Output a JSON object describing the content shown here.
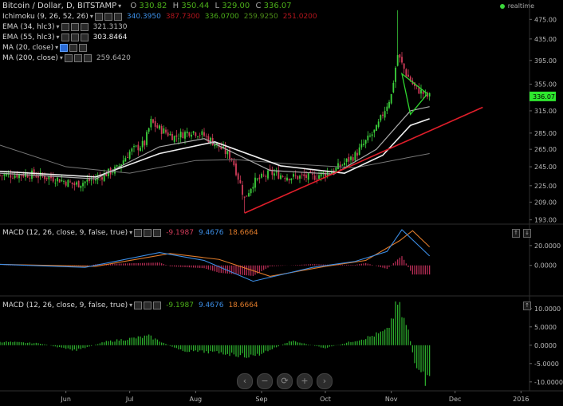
{
  "header": {
    "title": "Bitcoin / Dollar, D, BITSTAMP",
    "ohlc": {
      "o_label": "O",
      "o": "330.82",
      "h_label": "H",
      "h": "350.44",
      "l_label": "L",
      "l": "329.00",
      "c_label": "C",
      "c": "336.07"
    },
    "realtime": "realtime"
  },
  "indicators": [
    {
      "label": "Ichimoku (9, 26, 52, 26)",
      "values": [
        {
          "v": "340.3950",
          "color": "#3c8ee6"
        },
        {
          "v": "387.7300",
          "color": "#b3151d"
        },
        {
          "v": "336.0700",
          "color": "#4caf1a"
        },
        {
          "v": "259.9250",
          "color": "#4c8c18"
        },
        {
          "v": "251.0200",
          "color": "#b3151d"
        }
      ]
    },
    {
      "label": "EMA (34, hlc3)",
      "values": [
        {
          "v": "321.3130",
          "color": "#bbbbbb"
        }
      ]
    },
    {
      "label": "EMA (55, hlc3)",
      "values": [
        {
          "v": "303.8464",
          "color": "#eeeeee"
        }
      ]
    },
    {
      "label": "MA (20, close)",
      "values": []
    },
    {
      "label": "MA (200, close)",
      "values": [
        {
          "v": "259.6420",
          "color": "#aaaaaa"
        }
      ]
    }
  ],
  "macd_panels": [
    {
      "label": "MACD (12, 26, close, 9, false, true)",
      "values": [
        {
          "v": "-9.1987",
          "color": "#d23c5a"
        },
        {
          "v": "9.4676",
          "color": "#3c8ee6"
        },
        {
          "v": "18.6664",
          "color": "#e07b2a"
        }
      ]
    },
    {
      "label": "MACD (12, 26, close, 9, false, true)",
      "values": [
        {
          "v": "-9.1987",
          "color": "#4caf1a"
        },
        {
          "v": "9.4676",
          "color": "#3c8ee6"
        },
        {
          "v": "18.6664",
          "color": "#e07b2a"
        }
      ]
    }
  ],
  "price_axis": {
    "ticks": [
      "475.00",
      "435.00",
      "395.00",
      "355.00",
      "315.00",
      "285.00",
      "265.00",
      "245.00",
      "225.00",
      "209.00",
      "193.00"
    ],
    "last_price": "336.07"
  },
  "macd_axis": {
    "ticks": [
      "20.0000",
      "0.0000"
    ]
  },
  "hist_axis": {
    "ticks": [
      "10.0000",
      "5.0000",
      "0.0000",
      "-5.0000",
      "-10.0000"
    ]
  },
  "x_axis": {
    "months": [
      "Jun",
      "Jul",
      "Aug",
      "Sep",
      "Oct",
      "Nov",
      "Dec",
      "2016"
    ]
  },
  "nav_buttons": [
    "‹",
    "−",
    "⟳",
    "+",
    "›"
  ],
  "colors": {
    "up": "#3cd23c",
    "down": "#d23c5a",
    "trendline": "#e01e2a",
    "triangle": "#2fd62f",
    "ema34": "#aaaaaa",
    "ema55": "#f0f0f0",
    "ma200": "#777777",
    "macd": "#3c8ee6",
    "signal": "#e07b2a",
    "hist_down": "#c2305a",
    "hist_up": "#2fb82f"
  },
  "chart_data": {
    "type": "candlestick",
    "symbol": "Bitcoin / Dollar",
    "interval": "D",
    "exchange": "BITSTAMP",
    "y_scale": "log",
    "ylim": [
      190,
      500
    ],
    "xlim": [
      "2015-05-01",
      "2016-01-05"
    ],
    "close_path": [
      [
        "2015-05-01",
        236
      ],
      [
        "2015-05-15",
        237
      ],
      [
        "2015-05-28",
        232
      ],
      [
        "2015-06-05",
        226
      ],
      [
        "2015-06-15",
        232
      ],
      [
        "2015-06-25",
        243
      ],
      [
        "2015-07-01",
        262
      ],
      [
        "2015-07-08",
        272
      ],
      [
        "2015-07-11",
        300
      ],
      [
        "2015-07-14",
        292
      ],
      [
        "2015-07-22",
        280
      ],
      [
        "2015-07-30",
        288
      ],
      [
        "2015-08-05",
        282
      ],
      [
        "2015-08-12",
        268
      ],
      [
        "2015-08-18",
        255
      ],
      [
        "2015-08-24",
        212
      ],
      [
        "2015-08-28",
        228
      ],
      [
        "2015-09-05",
        238
      ],
      [
        "2015-09-15",
        234
      ],
      [
        "2015-09-25",
        234
      ],
      [
        "2015-10-05",
        241
      ],
      [
        "2015-10-15",
        258
      ],
      [
        "2015-10-25",
        290
      ],
      [
        "2015-11-01",
        338
      ],
      [
        "2015-11-04",
        405
      ],
      [
        "2015-11-08",
        372
      ],
      [
        "2015-11-12",
        350
      ],
      [
        "2015-11-18",
        336
      ],
      [
        "2015-11-19",
        336
      ]
    ],
    "spike_high": {
      "date": "2015-11-04",
      "value": 495
    },
    "spike_low": {
      "date": "2015-08-24",
      "value": 199
    },
    "ema34_path": [
      [
        "2015-05-01",
        238
      ],
      [
        "2015-06-15",
        232
      ],
      [
        "2015-07-15",
        268
      ],
      [
        "2015-08-05",
        278
      ],
      [
        "2015-09-05",
        241
      ],
      [
        "2015-10-05",
        237
      ],
      [
        "2015-10-25",
        265
      ],
      [
        "2015-11-10",
        315
      ],
      [
        "2015-11-19",
        321
      ]
    ],
    "ema55_path": [
      [
        "2015-05-01",
        240
      ],
      [
        "2015-06-15",
        234
      ],
      [
        "2015-07-15",
        260
      ],
      [
        "2015-08-10",
        274
      ],
      [
        "2015-09-10",
        246
      ],
      [
        "2015-10-10",
        238
      ],
      [
        "2015-10-28",
        258
      ],
      [
        "2015-11-10",
        295
      ],
      [
        "2015-11-19",
        304
      ]
    ],
    "ma200_path": [
      [
        "2015-05-01",
        270
      ],
      [
        "2015-06-01",
        245
      ],
      [
        "2015-07-01",
        238
      ],
      [
        "2015-08-01",
        252
      ],
      [
        "2015-08-20",
        253
      ],
      [
        "2015-09-15",
        248
      ],
      [
        "2015-10-15",
        244
      ],
      [
        "2015-11-19",
        260
      ]
    ],
    "trendline": [
      [
        "2015-08-24",
        199
      ],
      [
        "2015-12-14",
        320
      ]
    ],
    "triangle": [
      [
        "2015-11-06",
        372
      ],
      [
        "2015-11-18",
        340
      ],
      [
        "2015-11-10",
        310
      ]
    ],
    "macd": {
      "ylim": [
        -30,
        40
      ],
      "macd_path": [
        [
          "2015-05-01",
          1
        ],
        [
          "2015-06-10",
          -2
        ],
        [
          "2015-07-15",
          13
        ],
        [
          "2015-08-05",
          5
        ],
        [
          "2015-08-28",
          -16
        ],
        [
          "2015-09-25",
          -2
        ],
        [
          "2015-10-15",
          4
        ],
        [
          "2015-10-30",
          14
        ],
        [
          "2015-11-06",
          36
        ],
        [
          "2015-11-19",
          9.5
        ]
      ],
      "signal_path": [
        [
          "2015-05-01",
          1
        ],
        [
          "2015-06-15",
          -1
        ],
        [
          "2015-07-20",
          12
        ],
        [
          "2015-08-12",
          6
        ],
        [
          "2015-09-05",
          -11
        ],
        [
          "2015-10-01",
          -1
        ],
        [
          "2015-10-20",
          5
        ],
        [
          "2015-11-05",
          25
        ],
        [
          "2015-11-11",
          35
        ],
        [
          "2015-11-19",
          18.7
        ]
      ],
      "hist_last": -9.1987
    },
    "histogram": {
      "ylim": [
        -12,
        13
      ],
      "path": [
        [
          "2015-05-01",
          1
        ],
        [
          "2015-05-20",
          0.5
        ],
        [
          "2015-06-05",
          -1.5
        ],
        [
          "2015-06-20",
          1
        ],
        [
          "2015-07-10",
          2.5
        ],
        [
          "2015-07-25",
          -1.5
        ],
        [
          "2015-08-10",
          -2
        ],
        [
          "2015-08-28",
          -3.2
        ],
        [
          "2015-09-15",
          1.2
        ],
        [
          "2015-10-01",
          -0.8
        ],
        [
          "2015-10-20",
          2
        ],
        [
          "2015-10-30",
          4
        ],
        [
          "2015-11-04",
          11.5
        ],
        [
          "2015-11-09",
          4
        ],
        [
          "2015-11-13",
          -8
        ],
        [
          "2015-11-19",
          -10.5
        ]
      ]
    }
  }
}
